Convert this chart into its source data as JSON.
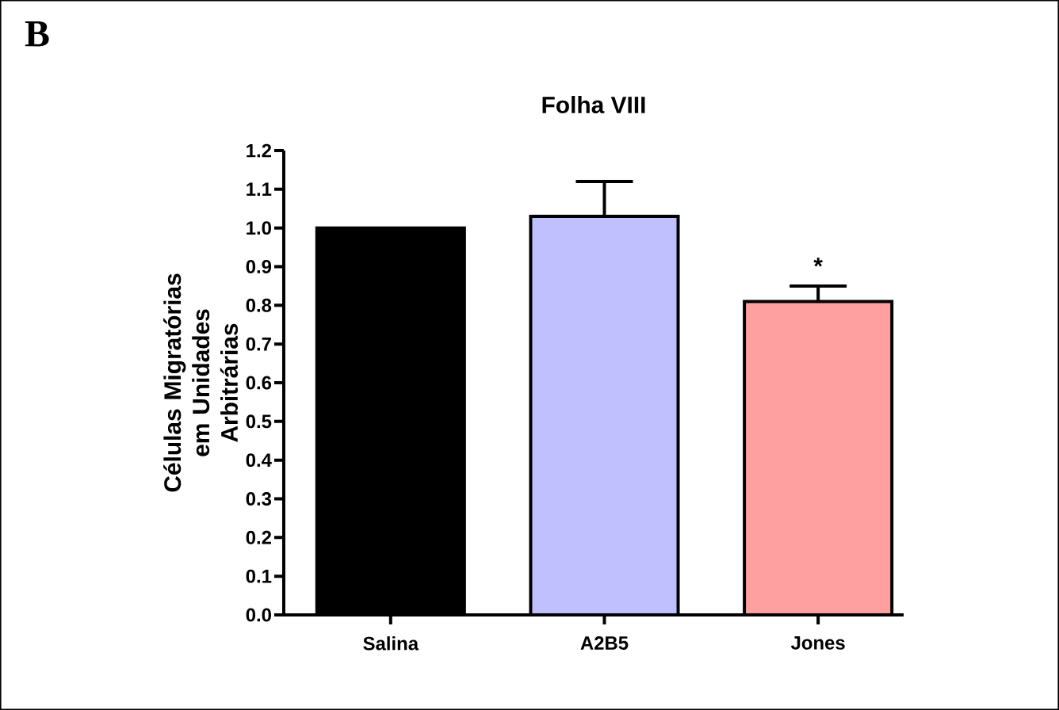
{
  "chart_data": {
    "type": "bar",
    "title": "Folha VIII",
    "ylabel": "Células Migratórias em Unidades Arbitrárias",
    "categories": [
      "Salina",
      "A2B5",
      "Jones"
    ],
    "values": [
      1.0,
      1.03,
      0.81
    ],
    "colors": [
      "#000000",
      "#c0c0ff",
      "#ffa0a0"
    ],
    "errors": [
      null,
      0.09,
      0.04
    ],
    "ylim": [
      0,
      1.2
    ],
    "yticks": [
      {
        "value": 0,
        "label": "0.0"
      },
      {
        "value": 0.1,
        "label": "0.1"
      },
      {
        "value": 0.2,
        "label": "0.2"
      },
      {
        "value": 0.3,
        "label": "0.3"
      },
      {
        "value": 0.4,
        "label": "0.4"
      },
      {
        "value": 0.5,
        "label": "0.5"
      },
      {
        "value": 0.6,
        "label": "0.6"
      },
      {
        "value": 0.7,
        "label": "0.7"
      },
      {
        "value": 0.8,
        "label": "0.8"
      },
      {
        "value": 0.9,
        "label": "0.9"
      },
      {
        "value": 1.0,
        "label": "1.0"
      },
      {
        "value": 1.1,
        "label": "1.1"
      },
      {
        "value": 1.2,
        "label": "1.2"
      }
    ],
    "annotations": [
      "B",
      "*"
    ],
    "grid": false
  }
}
